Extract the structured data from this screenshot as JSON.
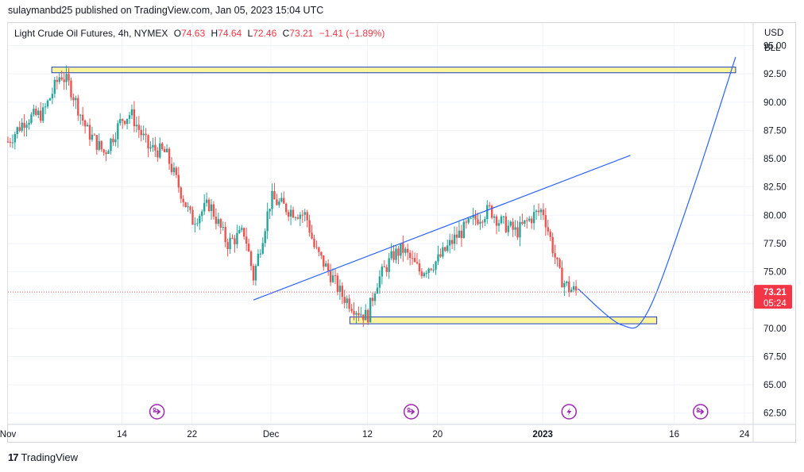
{
  "header": {
    "publisher": "sulaymanbd25 published on TradingView.com, Jan 05, 2023 15:04 UTC"
  },
  "legend": {
    "symbol": "Light Crude Oil Futures, 4h, NYMEX",
    "open_label": "O",
    "open": "74.63",
    "high_label": "H",
    "high": "74.64",
    "low_label": "L",
    "low": "72.46",
    "close_label": "C",
    "close": "73.21",
    "change": "−1.41 (−1.89%)"
  },
  "axis": {
    "currency": "USD",
    "unit": "BLL"
  },
  "last_price": {
    "value": "73.21",
    "countdown": "05:24"
  },
  "footer": {
    "brand": "TradingView",
    "logo": "tradingview-logo"
  },
  "colors": {
    "up": "#26a69a",
    "down": "#ef5350",
    "trendline": "#2962ff",
    "zone_fill": "#fff59d",
    "zone_border": "#1f3fbf",
    "event_icon": "#9c27b0"
  },
  "chart_data": {
    "type": "candlestick",
    "timeframe": "4h",
    "y_ticks": [
      62.5,
      65.0,
      67.5,
      70.0,
      72.5,
      75.0,
      77.5,
      80.0,
      82.5,
      85.0,
      87.5,
      90.0,
      92.5,
      95.0
    ],
    "y_tick_labels": [
      "62.50",
      "65.00",
      "67.50",
      "70.00",
      "72.50",
      "75.00",
      "77.50",
      "80.00",
      "82.50",
      "85.00",
      "87.50",
      "90.00",
      "92.50",
      "95.00"
    ],
    "ylim": [
      61.5,
      97.0
    ],
    "x_tick_labels": [
      {
        "label": "Nov",
        "date": "2022-11-01"
      },
      {
        "label": "14",
        "date": "2022-11-14"
      },
      {
        "label": "22",
        "date": "2022-11-22"
      },
      {
        "label": "Dec",
        "date": "2022-12-01"
      },
      {
        "label": "12",
        "date": "2022-12-12"
      },
      {
        "label": "20",
        "date": "2022-12-20"
      },
      {
        "label": "2023",
        "date": "2023-01-01"
      },
      {
        "label": "16",
        "date": "2023-01-16"
      },
      {
        "label": "24",
        "date": "2023-01-24"
      }
    ],
    "xlim": [
      "2022-11-01",
      "2023-01-25"
    ],
    "close_path": [
      [
        "2022-11-01",
        86.5
      ],
      [
        "2022-11-03",
        88.5
      ],
      [
        "2022-11-05",
        89.0
      ],
      [
        "2022-11-07",
        92.5
      ],
      [
        "2022-11-08",
        91.5
      ],
      [
        "2022-11-09",
        89.5
      ],
      [
        "2022-11-10",
        87.5
      ],
      [
        "2022-11-12",
        85.5
      ],
      [
        "2022-11-14",
        88.5
      ],
      [
        "2022-11-15",
        89.0
      ],
      [
        "2022-11-17",
        86.0
      ],
      [
        "2022-11-19",
        85.5
      ],
      [
        "2022-11-21",
        81.5
      ],
      [
        "2022-11-22",
        79.5
      ],
      [
        "2022-11-24",
        81.0
      ],
      [
        "2022-11-26",
        77.5
      ],
      [
        "2022-11-28",
        78.5
      ],
      [
        "2022-11-29",
        74.5
      ],
      [
        "2022-11-30",
        78.0
      ],
      [
        "2022-12-01",
        81.5
      ],
      [
        "2022-12-03",
        80.5
      ],
      [
        "2022-12-05",
        80.0
      ],
      [
        "2022-12-06",
        77.0
      ],
      [
        "2022-12-08",
        74.5
      ],
      [
        "2022-12-09",
        73.0
      ],
      [
        "2022-12-11",
        71.5
      ],
      [
        "2022-12-12",
        71.0
      ],
      [
        "2022-12-13",
        74.0
      ],
      [
        "2022-12-15",
        76.5
      ],
      [
        "2022-12-16",
        77.0
      ],
      [
        "2022-12-18",
        75.0
      ],
      [
        "2022-12-20",
        76.0
      ],
      [
        "2022-12-22",
        78.0
      ],
      [
        "2022-12-24",
        79.5
      ],
      [
        "2022-12-26",
        80.5
      ],
      [
        "2022-12-27",
        79.5
      ],
      [
        "2022-12-29",
        78.5
      ],
      [
        "2022-12-31",
        80.0
      ],
      [
        "2023-01-01",
        80.5
      ],
      [
        "2023-01-02",
        77.5
      ],
      [
        "2023-01-03",
        74.5
      ],
      [
        "2023-01-04",
        73.5
      ],
      [
        "2023-01-05",
        73.21
      ]
    ],
    "drawings": {
      "supply_zone": {
        "from": "2022-11-06",
        "to": "2023-01-23",
        "low": 92.6,
        "high": 93.1
      },
      "demand_zone": {
        "from": "2022-12-10",
        "to": "2023-01-14",
        "low": 70.4,
        "high": 71.0
      },
      "rising_trendline": [
        [
          "2022-11-29",
          72.5
        ],
        [
          "2023-01-11",
          85.3
        ]
      ],
      "projection_curve": [
        [
          "2023-01-05",
          73.5
        ],
        [
          "2023-01-10",
          70.3
        ],
        [
          "2023-01-13",
          71.5
        ],
        [
          "2023-01-18",
          82.0
        ],
        [
          "2023-01-23",
          94.0
        ]
      ]
    },
    "event_icons": [
      {
        "date": "2022-11-18",
        "kind": "dividend-arrow"
      },
      {
        "date": "2022-12-17",
        "kind": "dividend-arrow"
      },
      {
        "date": "2023-01-04",
        "kind": "lightning"
      },
      {
        "date": "2023-01-19",
        "kind": "dividend-arrow"
      }
    ]
  }
}
